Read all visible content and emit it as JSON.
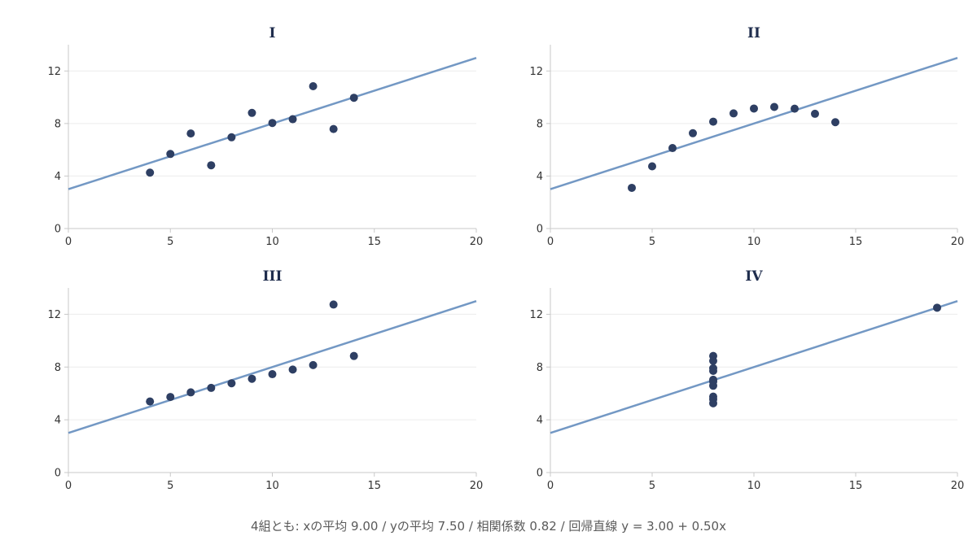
{
  "colors": {
    "point": "#2e3f63",
    "line": "#7398c4",
    "title": "#1f2d4d",
    "caption": "#5a5a5a"
  },
  "caption": "4組とも: xの平均 9.00 / yの平均 7.50 / 相関係数 0.82 / 回帰直線 y = 3.00 + 0.50x",
  "chart_data": [
    {
      "type": "scatter",
      "title": "I",
      "xlim": [
        0,
        20
      ],
      "ylim": [
        0,
        14
      ],
      "xticks": [
        0,
        5,
        10,
        15,
        20
      ],
      "yticks": [
        0,
        4,
        8,
        12
      ],
      "points": [
        [
          10,
          8.04
        ],
        [
          8,
          6.95
        ],
        [
          13,
          7.58
        ],
        [
          9,
          8.81
        ],
        [
          11,
          8.33
        ],
        [
          14,
          9.96
        ],
        [
          6,
          7.24
        ],
        [
          4,
          4.26
        ],
        [
          12,
          10.84
        ],
        [
          7,
          4.82
        ],
        [
          5,
          5.68
        ]
      ],
      "regression": {
        "intercept": 3.0,
        "slope": 0.5
      }
    },
    {
      "type": "scatter",
      "title": "II",
      "xlim": [
        0,
        20
      ],
      "ylim": [
        0,
        14
      ],
      "xticks": [
        0,
        5,
        10,
        15,
        20
      ],
      "yticks": [
        0,
        4,
        8,
        12
      ],
      "points": [
        [
          10,
          9.14
        ],
        [
          8,
          8.14
        ],
        [
          13,
          8.74
        ],
        [
          9,
          8.77
        ],
        [
          11,
          9.26
        ],
        [
          14,
          8.1
        ],
        [
          6,
          6.13
        ],
        [
          4,
          3.1
        ],
        [
          12,
          9.13
        ],
        [
          7,
          7.26
        ],
        [
          5,
          4.74
        ]
      ],
      "regression": {
        "intercept": 3.0,
        "slope": 0.5
      }
    },
    {
      "type": "scatter",
      "title": "III",
      "xlim": [
        0,
        20
      ],
      "ylim": [
        0,
        14
      ],
      "xticks": [
        0,
        5,
        10,
        15,
        20
      ],
      "yticks": [
        0,
        4,
        8,
        12
      ],
      "points": [
        [
          10,
          7.46
        ],
        [
          8,
          6.77
        ],
        [
          13,
          12.74
        ],
        [
          9,
          7.11
        ],
        [
          11,
          7.81
        ],
        [
          14,
          8.84
        ],
        [
          6,
          6.08
        ],
        [
          4,
          5.39
        ],
        [
          12,
          8.15
        ],
        [
          7,
          6.42
        ],
        [
          5,
          5.73
        ]
      ],
      "regression": {
        "intercept": 3.0,
        "slope": 0.5
      }
    },
    {
      "type": "scatter",
      "title": "IV",
      "xlim": [
        0,
        20
      ],
      "ylim": [
        0,
        14
      ],
      "xticks": [
        0,
        5,
        10,
        15,
        20
      ],
      "yticks": [
        0,
        4,
        8,
        12
      ],
      "points": [
        [
          8,
          6.58
        ],
        [
          8,
          5.76
        ],
        [
          8,
          7.71
        ],
        [
          8,
          8.84
        ],
        [
          8,
          8.47
        ],
        [
          8,
          7.04
        ],
        [
          8,
          5.25
        ],
        [
          19,
          12.5
        ],
        [
          8,
          5.56
        ],
        [
          8,
          7.91
        ],
        [
          8,
          6.89
        ]
      ],
      "regression": {
        "intercept": 3.0,
        "slope": 0.5
      }
    }
  ]
}
